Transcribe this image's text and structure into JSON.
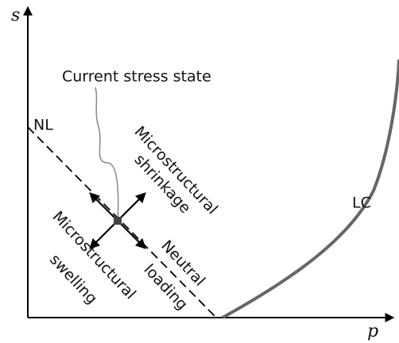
{
  "axes": {
    "y_label": "s",
    "x_label": "p"
  },
  "callout": "Current stress state",
  "lines": {
    "neutral_line": "NL",
    "loading_collapse": "LC"
  },
  "regions": {
    "shrinkage": [
      "Microstructural",
      "shrinkage"
    ],
    "swelling": [
      "Microstructural",
      "swelling"
    ],
    "neutral": [
      "Neutral",
      "loading"
    ]
  }
}
